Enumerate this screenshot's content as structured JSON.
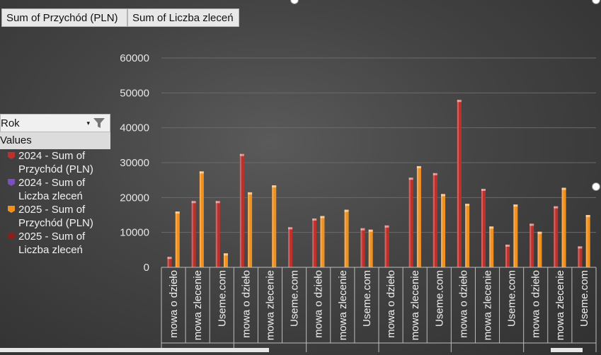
{
  "buttons": {
    "revenue": "Sum of Przychód (PLN)",
    "count": "Sum of Liczba zleceń"
  },
  "filter": {
    "field": "Rok",
    "values_header": "Values"
  },
  "legend": [
    {
      "label": "2024 - Sum of Przychód (PLN)",
      "color": "#c0302b"
    },
    {
      "label": "2024 - Sum of Liczba zleceń",
      "color": "#7a4fbf"
    },
    {
      "label": "2025 - Sum of Przychód (PLN)",
      "color": "#f0901e"
    },
    {
      "label": "2025 - Sum of Liczba zleceń",
      "color": "#8b1f1f"
    }
  ],
  "chart_data": {
    "type": "bar",
    "ylim": [
      0,
      60000
    ],
    "yticks": [
      0,
      10000,
      20000,
      30000,
      40000,
      50000,
      60000
    ],
    "grid": true,
    "categories_visible": [
      "mowa o dzieło",
      "mowa zlecenie",
      "Useme.com",
      "mowa o dzieło",
      "mowa zlecenie",
      "Useme.com",
      "mowa o dzieło",
      "mowa zlecenie",
      "Useme.com",
      "mowa o dzieło",
      "mowa zlecenie",
      "Useme.com",
      "mowa o dzieło",
      "mowa zlecenie",
      "Useme.com",
      "mowa o dzieło",
      "mowa zlecenie",
      "Useme.com"
    ],
    "series": [
      {
        "name": "2024 - Sum of Przychód (PLN)",
        "color": "#c0302b",
        "values": [
          3000,
          19000,
          19000,
          32500,
          null,
          11500,
          14000,
          null,
          11200,
          12000,
          25700,
          27000,
          48000,
          22500,
          6500,
          12500,
          17500,
          6000
        ]
      },
      {
        "name": "2025 - Sum of Przychód (PLN)",
        "color": "#f0901e",
        "values": [
          16000,
          27500,
          4000,
          21500,
          23500,
          null,
          14700,
          16500,
          10800,
          null,
          29000,
          21000,
          18200,
          11700,
          18000,
          10200,
          22800,
          15000
        ]
      }
    ]
  }
}
